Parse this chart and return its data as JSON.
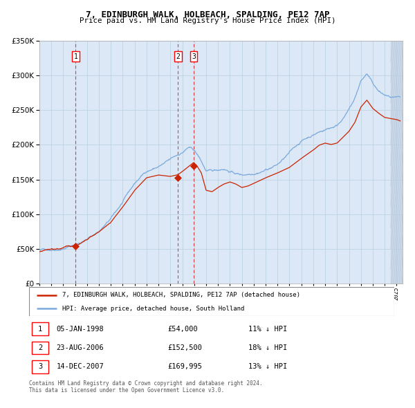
{
  "title": "7, EDINBURGH WALK, HOLBEACH, SPALDING, PE12 7AP",
  "subtitle": "Price paid vs. HM Land Registry's House Price Index (HPI)",
  "hpi_label": "HPI: Average price, detached house, South Holland",
  "property_label": "7, EDINBURGH WALK, HOLBEACH, SPALDING, PE12 7AP (detached house)",
  "sale_points": [
    {
      "date_num": 1998.04,
      "price": 54000,
      "label": "1"
    },
    {
      "date_num": 2006.64,
      "price": 152500,
      "label": "2"
    },
    {
      "date_num": 2007.95,
      "price": 169995,
      "label": "3"
    }
  ],
  "sale_annotations": [
    {
      "label": "1",
      "date": "05-JAN-1998",
      "price": "£54,000",
      "hpi": "11% ↓ HPI"
    },
    {
      "label": "2",
      "date": "23-AUG-2006",
      "price": "£152,500",
      "hpi": "18% ↓ HPI"
    },
    {
      "label": "3",
      "date": "14-DEC-2007",
      "price": "£169,995",
      "hpi": "13% ↓ HPI"
    }
  ],
  "ylim": [
    0,
    350000
  ],
  "xlim_start": 1995.0,
  "xlim_end": 2025.5,
  "plot_bg_color": "#dce8f5",
  "grid_color": "#b8cfe0",
  "hpi_line_color": "#7aaadd",
  "property_line_color": "#cc2200",
  "dashed_line_color": "#cc3333",
  "marker_color": "#cc2200",
  "footer_text": "Contains HM Land Registry data © Crown copyright and database right 2024.\nThis data is licensed under the Open Government Licence v3.0.",
  "hpi_anchors_x": [
    1995.0,
    1996.0,
    1997.0,
    1998.0,
    1999.0,
    2000.0,
    2001.0,
    2002.0,
    2003.0,
    2004.0,
    2005.0,
    2006.0,
    2006.5,
    2007.0,
    2007.5,
    2008.0,
    2008.5,
    2009.0,
    2009.5,
    2010.0,
    2010.5,
    2011.0,
    2011.5,
    2012.0,
    2012.5,
    2013.0,
    2014.0,
    2015.0,
    2016.0,
    2017.0,
    2018.0,
    2019.0,
    2020.0,
    2021.0,
    2021.5,
    2022.0,
    2022.5,
    2023.0,
    2023.5,
    2024.0,
    2024.5,
    2025.0,
    2025.3
  ],
  "hpi_anchors_y": [
    48000,
    50000,
    54000,
    60000,
    68000,
    80000,
    97000,
    120000,
    145000,
    163000,
    170000,
    178000,
    183000,
    188000,
    195000,
    190000,
    177000,
    160000,
    158000,
    160000,
    163000,
    160000,
    157000,
    155000,
    157000,
    160000,
    167000,
    175000,
    190000,
    207000,
    217000,
    225000,
    232000,
    255000,
    270000,
    295000,
    305000,
    290000,
    278000,
    272000,
    268000,
    265000,
    263000
  ],
  "prop_anchors_x": [
    1995.0,
    1996.0,
    1997.0,
    1998.04,
    1999.0,
    2000.0,
    2001.0,
    2002.0,
    2003.0,
    2004.0,
    2005.0,
    2006.0,
    2006.64,
    2007.0,
    2007.95,
    2008.2,
    2008.6,
    2009.0,
    2009.5,
    2010.0,
    2010.5,
    2011.0,
    2011.5,
    2012.0,
    2012.5,
    2013.0,
    2014.0,
    2015.0,
    2016.0,
    2017.0,
    2018.0,
    2018.5,
    2019.0,
    2019.5,
    2020.0,
    2021.0,
    2021.5,
    2022.0,
    2022.5,
    2023.0,
    2023.5,
    2024.0,
    2025.0,
    2025.3
  ],
  "prop_anchors_y": [
    46000,
    48000,
    50000,
    54000,
    60000,
    70000,
    84000,
    106000,
    130000,
    148000,
    152000,
    150000,
    152500,
    157000,
    169995,
    166000,
    155000,
    130000,
    128000,
    134000,
    139000,
    142000,
    139000,
    134000,
    136000,
    140000,
    148000,
    155000,
    163000,
    176000,
    188000,
    195000,
    198000,
    196000,
    198000,
    215000,
    228000,
    250000,
    260000,
    248000,
    241000,
    235000,
    232000,
    230000
  ]
}
